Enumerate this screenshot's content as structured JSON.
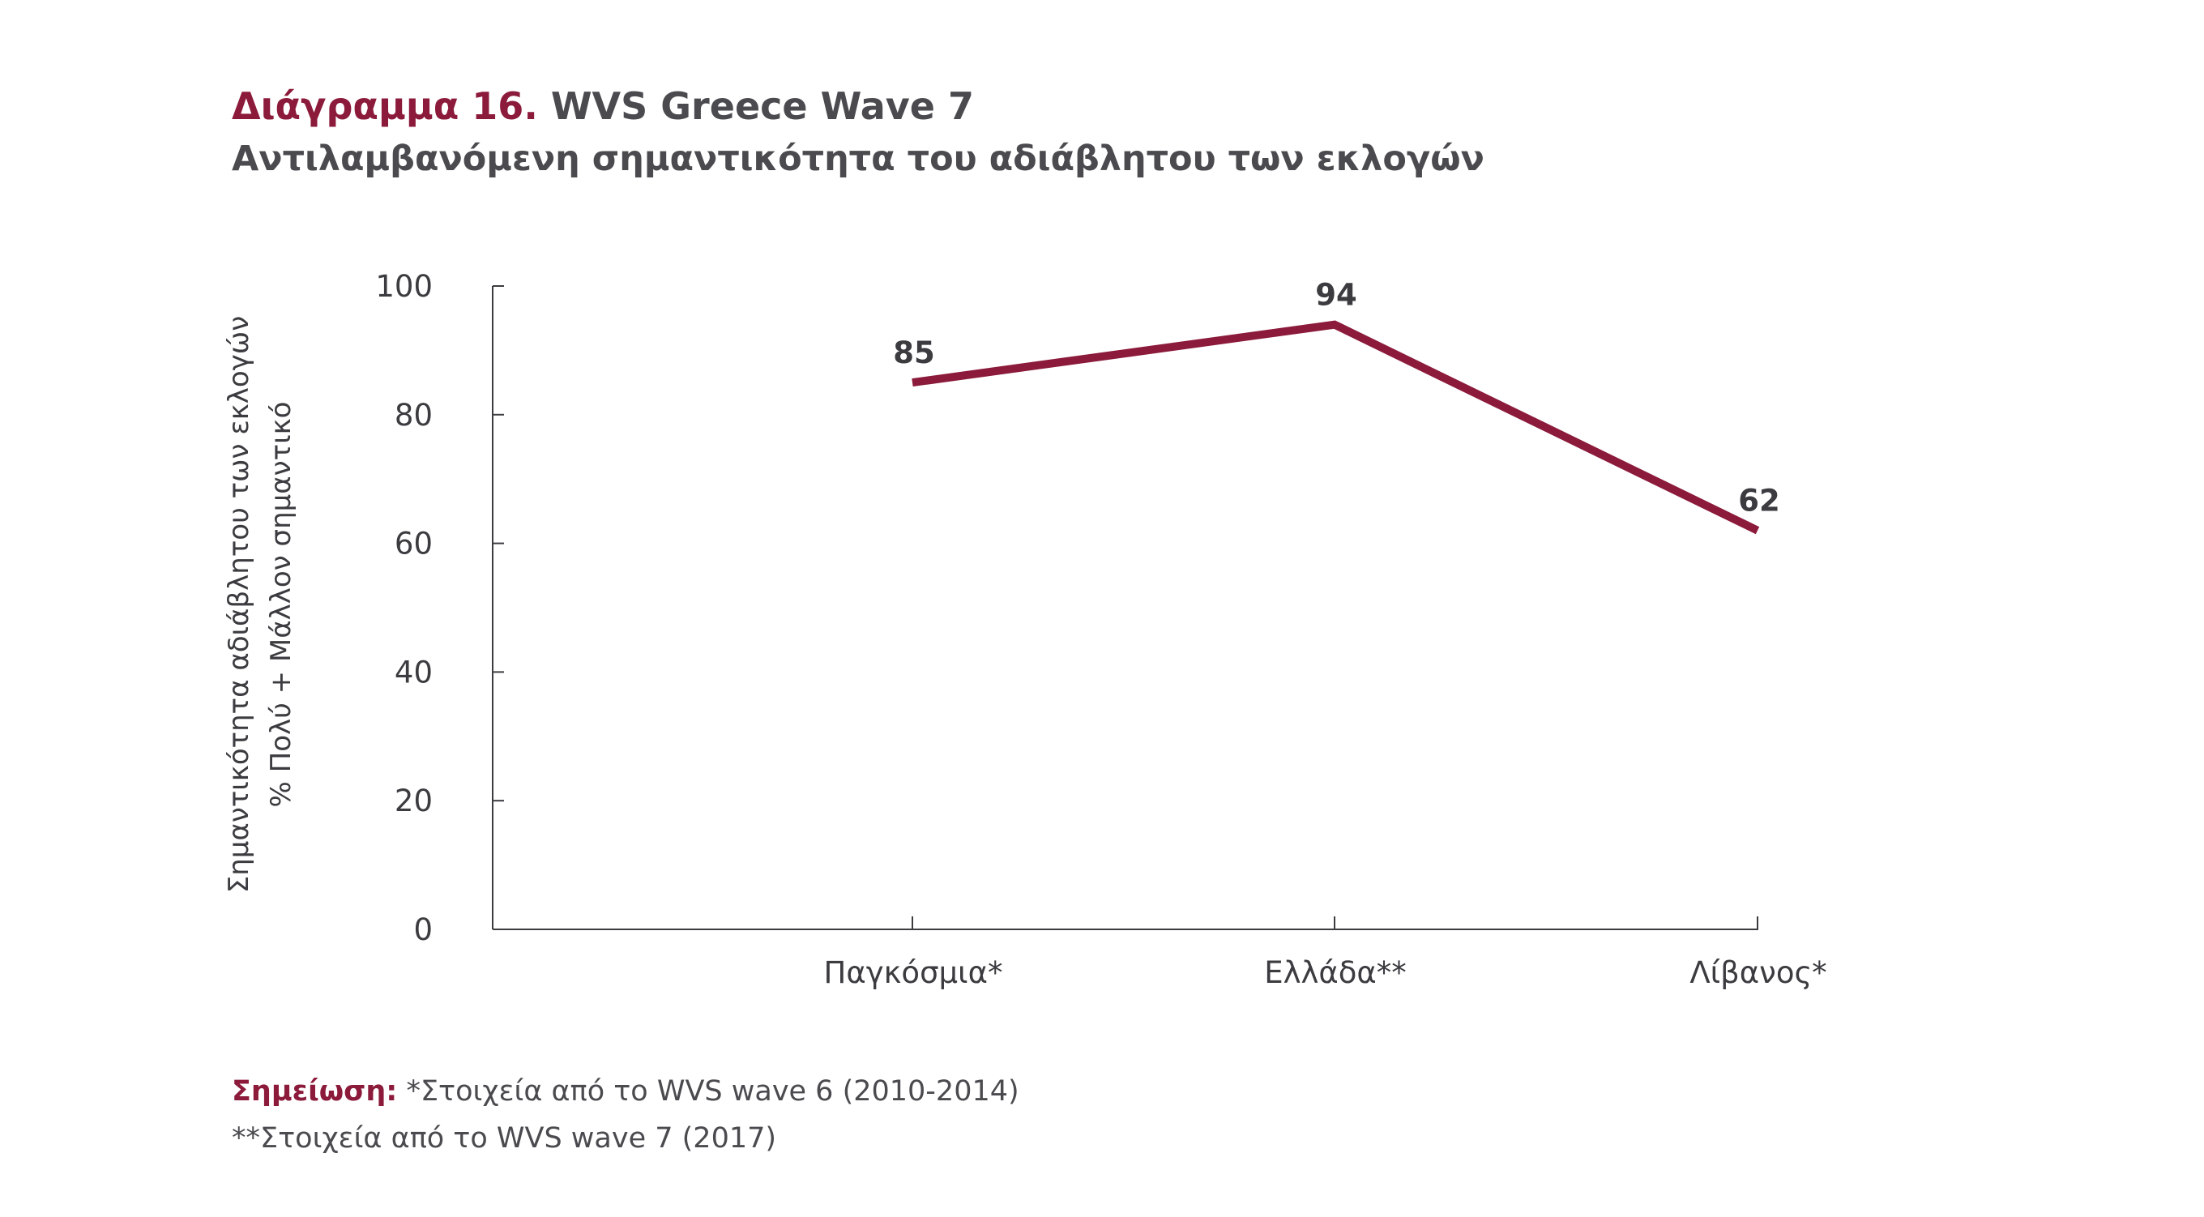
{
  "title": {
    "prefix": "Διάγραμμα 16.",
    "main": "WVS Greece Wave 7",
    "subtitle": "Αντιλαμβανόμενη σημαντικότητα του αδιάβλητου των εκλογών"
  },
  "colors": {
    "accent": "#8b1a3b",
    "text": "#4a4a4f",
    "axis": "#3b3b40"
  },
  "chart_data": {
    "type": "line",
    "categories": [
      "Παγκόσμια*",
      "Ελλάδα**",
      "Λίβανος*"
    ],
    "series": [
      {
        "values": [
          85,
          94,
          62
        ],
        "color": "#8b1a3b"
      }
    ],
    "data_labels": [
      "85",
      "94",
      "62"
    ],
    "ylabel_line1": "Σημαντικότητα αδιάβλητου των εκλογών",
    "ylabel_line2": "% Πολύ + Μάλλον σημαντικό",
    "xlabel": "",
    "ylim": [
      0,
      100
    ],
    "yticks": [
      0,
      20,
      40,
      60,
      80,
      100
    ],
    "grid": false,
    "legend": "none"
  },
  "note": {
    "label": "Σημείωση:",
    "line1": "*Στοιχεία από το WVS wave 6 (2010-2014)",
    "line2": "**Στοιχεία από το WVS wave 7 (2017)"
  }
}
